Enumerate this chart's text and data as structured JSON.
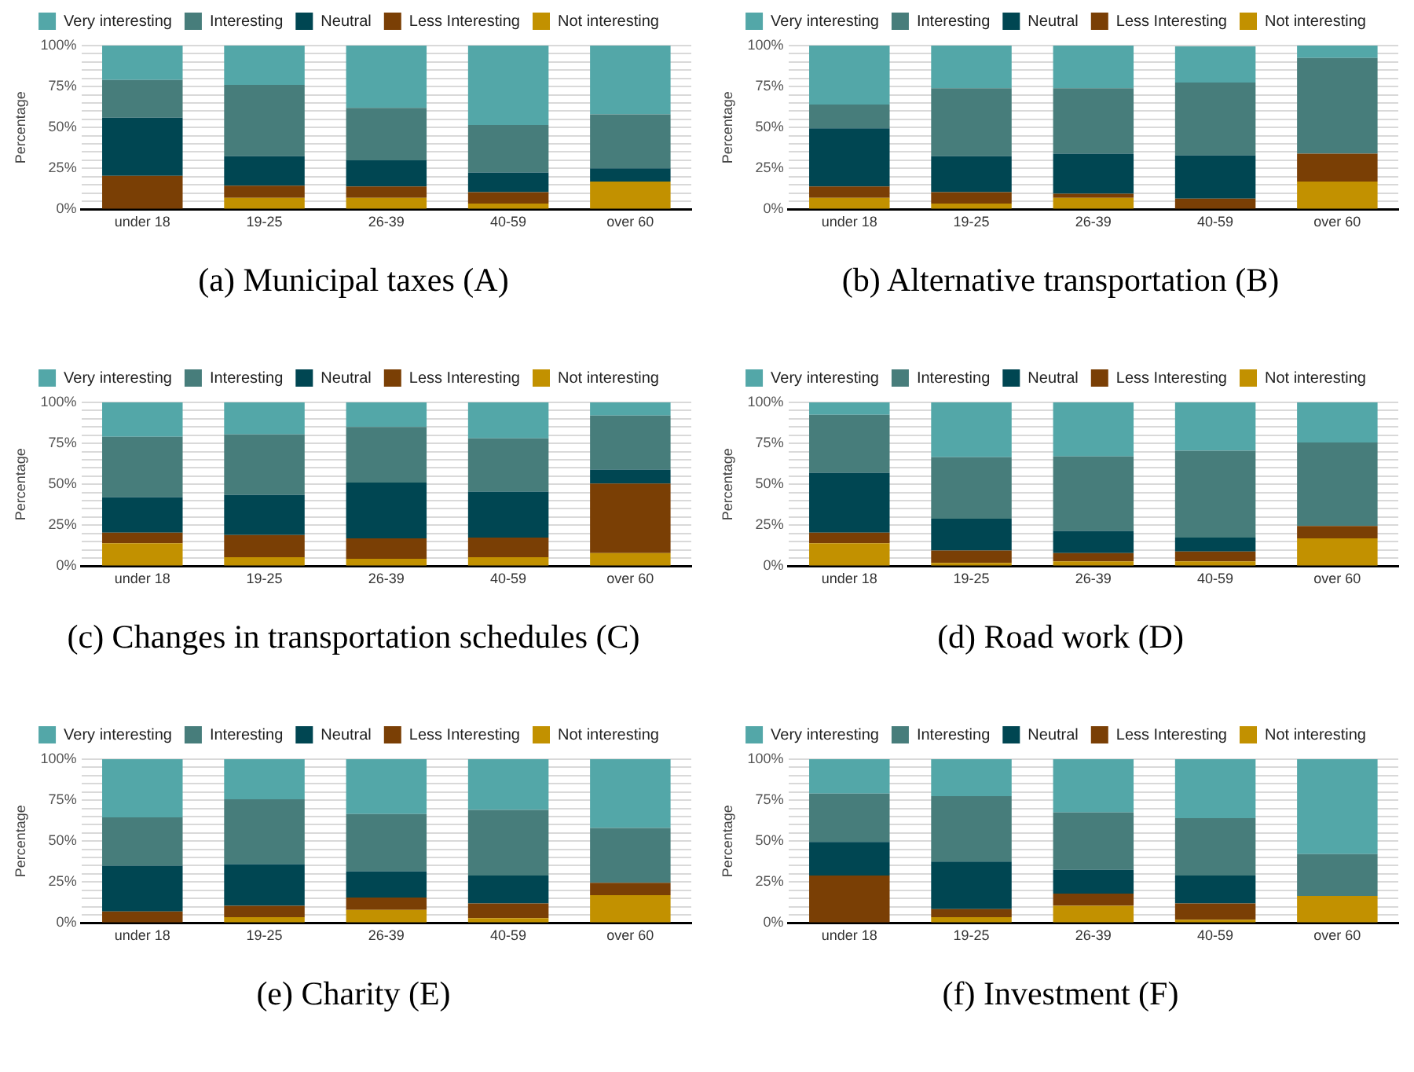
{
  "chart_data": [
    {
      "type": "bar",
      "stacked": true,
      "title": "(a) Municipal taxes (A)",
      "ylabel": "Percentage",
      "legend": "top",
      "grid": "y",
      "ylim": [
        0,
        100
      ],
      "yticks": [
        {
          "value": 0,
          "label": "0%"
        },
        {
          "value": 5,
          "label": null
        },
        {
          "value": 10,
          "label": null
        },
        {
          "value": 15,
          "label": null
        },
        {
          "value": 20,
          "label": null
        },
        {
          "value": 25,
          "label": "25%"
        },
        {
          "value": 30,
          "label": null
        },
        {
          "value": 35,
          "label": null
        },
        {
          "value": 40,
          "label": null
        },
        {
          "value": 45,
          "label": null
        },
        {
          "value": 50,
          "label": "50%"
        },
        {
          "value": 55,
          "label": null
        },
        {
          "value": 60,
          "label": null
        },
        {
          "value": 65,
          "label": null
        },
        {
          "value": 70,
          "label": null
        },
        {
          "value": 75,
          "label": "75%"
        },
        {
          "value": 80,
          "label": null
        },
        {
          "value": 85,
          "label": null
        },
        {
          "value": 90,
          "label": null
        },
        {
          "value": 95,
          "label": null
        },
        {
          "value": 100,
          "label": "100%"
        }
      ],
      "categories": [
        "under 18",
        "19-25",
        "26-39",
        "40-59",
        "over 60"
      ],
      "series": [
        {
          "name": "Not interesting",
          "color": "#c29100",
          "values": [
            0,
            7,
            7,
            3.5,
            17
          ]
        },
        {
          "name": "Less Interesting",
          "color": "#7a3f05",
          "values": [
            20.5,
            7.5,
            7,
            7,
            0
          ]
        },
        {
          "name": "Neutral",
          "color": "#004652",
          "values": [
            35.5,
            18,
            16,
            12,
            8
          ]
        },
        {
          "name": "Interesting",
          "color": "#477d7b",
          "values": [
            23,
            43.5,
            32,
            29,
            33
          ]
        },
        {
          "name": "Very interesting",
          "color": "#53a7a8",
          "values": [
            21,
            24,
            38,
            48.5,
            42
          ]
        }
      ]
    },
    {
      "type": "bar",
      "stacked": true,
      "title": "(b) Alternative transportation (B)",
      "ylabel": "Percentage",
      "legend": "top",
      "grid": "y",
      "ylim": [
        0,
        100
      ],
      "yticks": [
        {
          "value": 0,
          "label": "0%"
        },
        {
          "value": 5,
          "label": null
        },
        {
          "value": 10,
          "label": null
        },
        {
          "value": 15,
          "label": null
        },
        {
          "value": 20,
          "label": null
        },
        {
          "value": 25,
          "label": "25%"
        },
        {
          "value": 30,
          "label": null
        },
        {
          "value": 35,
          "label": null
        },
        {
          "value": 40,
          "label": null
        },
        {
          "value": 45,
          "label": null
        },
        {
          "value": 50,
          "label": "50%"
        },
        {
          "value": 55,
          "label": null
        },
        {
          "value": 60,
          "label": null
        },
        {
          "value": 65,
          "label": null
        },
        {
          "value": 70,
          "label": null
        },
        {
          "value": 75,
          "label": "75%"
        },
        {
          "value": 80,
          "label": null
        },
        {
          "value": 85,
          "label": null
        },
        {
          "value": 90,
          "label": null
        },
        {
          "value": 95,
          "label": null
        },
        {
          "value": 100,
          "label": "100%"
        }
      ],
      "categories": [
        "under 18",
        "19-25",
        "26-39",
        "40-59",
        "over 60"
      ],
      "series": [
        {
          "name": "Not interesting",
          "color": "#c29100",
          "values": [
            7,
            3.5,
            7,
            null,
            17
          ]
        },
        {
          "name": "Less Interesting",
          "color": "#7a3f05",
          "values": [
            7,
            7,
            2.5,
            6.5,
            17
          ]
        },
        {
          "name": "Neutral",
          "color": "#004652",
          "values": [
            35.5,
            22,
            24.5,
            26.5,
            0
          ]
        },
        {
          "name": "Interesting",
          "color": "#477d7b",
          "values": [
            14.5,
            41.5,
            40,
            44.5,
            58.5
          ]
        },
        {
          "name": "Very interesting",
          "color": "#53a7a8",
          "values": [
            36,
            26,
            26,
            22,
            7.5
          ]
        }
      ]
    },
    {
      "type": "bar",
      "stacked": true,
      "title": "(c) Changes in transportation schedules (C)",
      "ylabel": "Percentage",
      "legend": "top",
      "grid": "y",
      "ylim": [
        0,
        100
      ],
      "yticks": [
        {
          "value": 0,
          "label": "0%"
        },
        {
          "value": 5,
          "label": null
        },
        {
          "value": 10,
          "label": null
        },
        {
          "value": 15,
          "label": null
        },
        {
          "value": 20,
          "label": null
        },
        {
          "value": 25,
          "label": "25%"
        },
        {
          "value": 30,
          "label": null
        },
        {
          "value": 35,
          "label": null
        },
        {
          "value": 40,
          "label": null
        },
        {
          "value": 45,
          "label": null
        },
        {
          "value": 50,
          "label": "50%"
        },
        {
          "value": 55,
          "label": null
        },
        {
          "value": 60,
          "label": null
        },
        {
          "value": 65,
          "label": null
        },
        {
          "value": 70,
          "label": null
        },
        {
          "value": 75,
          "label": "75%"
        },
        {
          "value": 80,
          "label": null
        },
        {
          "value": 85,
          "label": null
        },
        {
          "value": 90,
          "label": null
        },
        {
          "value": 95,
          "label": null
        },
        {
          "value": 100,
          "label": "100%"
        }
      ],
      "categories": [
        "under 18",
        "19-25",
        "26-39",
        "40-59",
        "over 60"
      ],
      "series": [
        {
          "name": "Not interesting",
          "color": "#c29100",
          "values": [
            14,
            5.5,
            4.5,
            5.5,
            8
          ]
        },
        {
          "name": "Less Interesting",
          "color": "#7a3f05",
          "values": [
            6.5,
            13.5,
            12.5,
            12,
            42.5
          ]
        },
        {
          "name": "Neutral",
          "color": "#004652",
          "values": [
            21.5,
            24.5,
            34,
            28,
            8.5
          ]
        },
        {
          "name": "Interesting",
          "color": "#477d7b",
          "values": [
            37,
            37,
            34,
            32.5,
            33
          ]
        },
        {
          "name": "Very interesting",
          "color": "#53a7a8",
          "values": [
            21,
            19.5,
            15,
            22,
            8
          ]
        }
      ]
    },
    {
      "type": "bar",
      "stacked": true,
      "title": "(d) Road work (D)",
      "ylabel": "Percentage",
      "legend": "top",
      "grid": "y",
      "ylim": [
        0,
        100
      ],
      "yticks": [
        {
          "value": 0,
          "label": "0%"
        },
        {
          "value": 5,
          "label": null
        },
        {
          "value": 10,
          "label": null
        },
        {
          "value": 15,
          "label": null
        },
        {
          "value": 20,
          "label": null
        },
        {
          "value": 25,
          "label": "25%"
        },
        {
          "value": 30,
          "label": null
        },
        {
          "value": 35,
          "label": null
        },
        {
          "value": 40,
          "label": null
        },
        {
          "value": 45,
          "label": null
        },
        {
          "value": 50,
          "label": "50%"
        },
        {
          "value": 55,
          "label": null
        },
        {
          "value": 60,
          "label": null
        },
        {
          "value": 65,
          "label": null
        },
        {
          "value": 70,
          "label": null
        },
        {
          "value": 75,
          "label": "75%"
        },
        {
          "value": 80,
          "label": null
        },
        {
          "value": 85,
          "label": null
        },
        {
          "value": 90,
          "label": null
        },
        {
          "value": 95,
          "label": null
        },
        {
          "value": 100,
          "label": "100%"
        }
      ],
      "categories": [
        "under 18",
        "19-25",
        "26-39",
        "40-59",
        "over 60"
      ],
      "series": [
        {
          "name": "Not interesting",
          "color": "#c29100",
          "values": [
            14,
            2,
            3,
            3,
            17
          ]
        },
        {
          "name": "Less Interesting",
          "color": "#7a3f05",
          "values": [
            6.5,
            7.5,
            5,
            6,
            7.5
          ]
        },
        {
          "name": "Neutral",
          "color": "#004652",
          "values": [
            36.5,
            19.5,
            13.5,
            8.5,
            0
          ]
        },
        {
          "name": "Interesting",
          "color": "#477d7b",
          "values": [
            35.5,
            37.5,
            45.5,
            53,
            51
          ]
        },
        {
          "name": "Very interesting",
          "color": "#53a7a8",
          "values": [
            7.5,
            33.5,
            33,
            29.5,
            24.5
          ]
        }
      ]
    },
    {
      "type": "bar",
      "stacked": true,
      "title": "(e) Charity (E)",
      "ylabel": "Percentage",
      "legend": "top",
      "grid": "y",
      "ylim": [
        0,
        100
      ],
      "yticks": [
        {
          "value": 0,
          "label": "0%"
        },
        {
          "value": 5,
          "label": null
        },
        {
          "value": 10,
          "label": null
        },
        {
          "value": 15,
          "label": null
        },
        {
          "value": 20,
          "label": null
        },
        {
          "value": 25,
          "label": "25%"
        },
        {
          "value": 30,
          "label": null
        },
        {
          "value": 35,
          "label": null
        },
        {
          "value": 40,
          "label": null
        },
        {
          "value": 45,
          "label": null
        },
        {
          "value": 50,
          "label": "50%"
        },
        {
          "value": 55,
          "label": null
        },
        {
          "value": 60,
          "label": null
        },
        {
          "value": 65,
          "label": null
        },
        {
          "value": 70,
          "label": null
        },
        {
          "value": 75,
          "label": "75%"
        },
        {
          "value": 80,
          "label": null
        },
        {
          "value": 85,
          "label": null
        },
        {
          "value": 90,
          "label": null
        },
        {
          "value": 95,
          "label": null
        },
        {
          "value": 100,
          "label": "100%"
        }
      ],
      "categories": [
        "under 18",
        "19-25",
        "26-39",
        "40-59",
        "over 60"
      ],
      "series": [
        {
          "name": "Not interesting",
          "color": "#c29100",
          "values": [
            0,
            3.5,
            8,
            3,
            17
          ]
        },
        {
          "name": "Less Interesting",
          "color": "#7a3f05",
          "values": [
            7,
            7,
            7.5,
            9,
            7.5
          ]
        },
        {
          "name": "Neutral",
          "color": "#004652",
          "values": [
            28,
            25.5,
            16,
            17,
            0
          ]
        },
        {
          "name": "Interesting",
          "color": "#477d7b",
          "values": [
            29.5,
            39.5,
            35,
            40,
            33.5
          ]
        },
        {
          "name": "Very interesting",
          "color": "#53a7a8",
          "values": [
            35.5,
            24.5,
            33.5,
            31,
            42
          ]
        }
      ]
    },
    {
      "type": "bar",
      "stacked": true,
      "title": "(f) Investment (F)",
      "ylabel": "Percentage",
      "legend": "top",
      "grid": "y",
      "ylim": [
        0,
        100
      ],
      "yticks": [
        {
          "value": 0,
          "label": "0%"
        },
        {
          "value": 5,
          "label": null
        },
        {
          "value": 10,
          "label": null
        },
        {
          "value": 15,
          "label": null
        },
        {
          "value": 20,
          "label": null
        },
        {
          "value": 25,
          "label": "25%"
        },
        {
          "value": 30,
          "label": null
        },
        {
          "value": 35,
          "label": null
        },
        {
          "value": 40,
          "label": null
        },
        {
          "value": 45,
          "label": null
        },
        {
          "value": 50,
          "label": "50%"
        },
        {
          "value": 55,
          "label": null
        },
        {
          "value": 60,
          "label": null
        },
        {
          "value": 65,
          "label": null
        },
        {
          "value": 70,
          "label": null
        },
        {
          "value": 75,
          "label": "75%"
        },
        {
          "value": 80,
          "label": null
        },
        {
          "value": 85,
          "label": null
        },
        {
          "value": 90,
          "label": null
        },
        {
          "value": 95,
          "label": null
        },
        {
          "value": 100,
          "label": "100%"
        }
      ],
      "categories": [
        "under 18",
        "19-25",
        "26-39",
        "40-59",
        "over 60"
      ],
      "series": [
        {
          "name": "Not interesting",
          "color": "#c29100",
          "values": [
            0,
            3.5,
            10.5,
            2,
            16.5
          ]
        },
        {
          "name": "Less Interesting",
          "color": "#7a3f05",
          "values": [
            29,
            5,
            7.5,
            10,
            0
          ]
        },
        {
          "name": "Neutral",
          "color": "#004652",
          "values": [
            20.5,
            29,
            14.5,
            17,
            0
          ]
        },
        {
          "name": "Interesting",
          "color": "#477d7b",
          "values": [
            29.5,
            40,
            35,
            35,
            25.5
          ]
        },
        {
          "name": "Very interesting",
          "color": "#53a7a8",
          "values": [
            21,
            22.5,
            32.5,
            36,
            58
          ]
        }
      ]
    }
  ]
}
